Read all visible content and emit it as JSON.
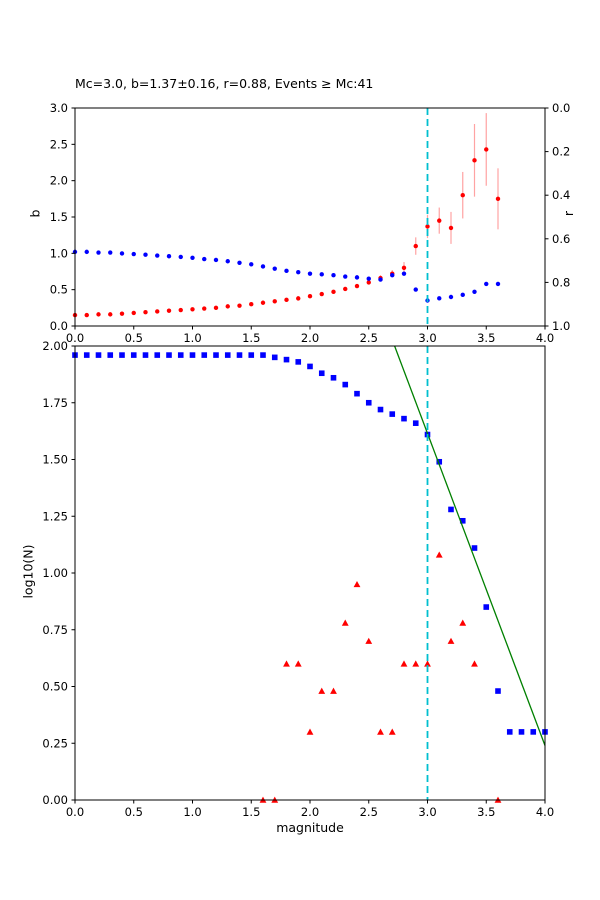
{
  "figure": {
    "title": "Mc=3.0, b=1.37±0.16, r=0.88, Events ≥ Mc:41",
    "background": "#ffffff"
  },
  "chart_data": [
    {
      "type": "scatter",
      "title": "Mc=3.0, b=1.37±0.16, r=0.88, Events ≥ Mc:41",
      "xlabel": "",
      "ylabel_left": "b",
      "ylabel_right": "r",
      "xlim": [
        0.0,
        4.0
      ],
      "ylim_left": [
        0.0,
        3.0
      ],
      "ylim_right": [
        0.0,
        1.0
      ],
      "right_axis_inverted": true,
      "grid": false,
      "x_tick_labels": [
        "0.0",
        "0.5",
        "1.0",
        "1.5",
        "2.0",
        "2.5",
        "3.0",
        "3.5",
        "4.0"
      ],
      "y_tick_labels_left": [
        "0.0",
        "0.5",
        "1.0",
        "1.5",
        "2.0",
        "2.5",
        "3.0"
      ],
      "y_tick_labels_right": [
        "0.0",
        "0.2",
        "0.4",
        "0.6",
        "0.8",
        "1.0"
      ],
      "vline": {
        "x": 3.0,
        "color": "#00bfcf",
        "style": "dashed"
      },
      "series": [
        {
          "name": "b-value-vs-cutoff",
          "axis": "left",
          "marker": "circle",
          "color": "#ff0000",
          "error_color": "#ffa3a3",
          "x": [
            0.0,
            0.1,
            0.2,
            0.3,
            0.4,
            0.5,
            0.6,
            0.7,
            0.8,
            0.9,
            1.0,
            1.1,
            1.2,
            1.3,
            1.4,
            1.5,
            1.6,
            1.7,
            1.8,
            1.9,
            2.0,
            2.1,
            2.2,
            2.3,
            2.4,
            2.5,
            2.6,
            2.7,
            2.8,
            2.9,
            3.0,
            3.1,
            3.2,
            3.3,
            3.4,
            3.5,
            3.6
          ],
          "y": [
            0.15,
            0.15,
            0.16,
            0.16,
            0.17,
            0.18,
            0.19,
            0.2,
            0.21,
            0.22,
            0.23,
            0.24,
            0.25,
            0.27,
            0.28,
            0.3,
            0.32,
            0.34,
            0.36,
            0.38,
            0.41,
            0.44,
            0.47,
            0.51,
            0.55,
            0.6,
            0.66,
            0.72,
            0.8,
            1.1,
            1.37,
            1.45,
            1.35,
            1.8,
            2.28,
            2.43,
            1.75
          ],
          "yerr": [
            0,
            0,
            0,
            0,
            0,
            0,
            0,
            0,
            0,
            0,
            0,
            0,
            0,
            0,
            0,
            0,
            0,
            0,
            0,
            0,
            0,
            0,
            0,
            0,
            0,
            0,
            0.04,
            0.05,
            0.08,
            0.12,
            0.16,
            0.18,
            0.22,
            0.32,
            0.5,
            0.5,
            0.42
          ]
        },
        {
          "name": "r-correlation-vs-cutoff",
          "axis": "right",
          "marker": "circle",
          "color": "#0000ff",
          "x": [
            0.0,
            0.1,
            0.2,
            0.3,
            0.4,
            0.5,
            0.6,
            0.7,
            0.8,
            0.9,
            1.0,
            1.1,
            1.2,
            1.3,
            1.4,
            1.5,
            1.6,
            1.7,
            1.8,
            1.9,
            2.0,
            2.1,
            2.2,
            2.3,
            2.4,
            2.5,
            2.6,
            2.7,
            2.8,
            2.9,
            3.0,
            3.1,
            3.2,
            3.3,
            3.4,
            3.5,
            3.6
          ],
          "y": [
            0.66,
            0.66,
            0.663,
            0.663,
            0.667,
            0.67,
            0.673,
            0.677,
            0.68,
            0.683,
            0.687,
            0.693,
            0.697,
            0.703,
            0.71,
            0.717,
            0.727,
            0.737,
            0.747,
            0.753,
            0.76,
            0.763,
            0.767,
            0.773,
            0.777,
            0.783,
            0.787,
            0.767,
            0.76,
            0.833,
            0.883,
            0.873,
            0.867,
            0.857,
            0.843,
            0.807,
            0.807
          ]
        }
      ]
    },
    {
      "type": "scatter",
      "xlabel": "magnitude",
      "ylabel": "log10(N)",
      "xlim": [
        0.0,
        4.0
      ],
      "ylim": [
        0.0,
        2.0
      ],
      "grid": false,
      "x_tick_labels": [
        "0.0",
        "0.5",
        "1.0",
        "1.5",
        "2.0",
        "2.5",
        "3.0",
        "3.5",
        "4.0"
      ],
      "y_tick_labels": [
        "0.00",
        "0.25",
        "0.50",
        "0.75",
        "1.00",
        "1.25",
        "1.50",
        "1.75",
        "2.00"
      ],
      "vline": {
        "x": 3.0,
        "color": "#00bfcf",
        "style": "dashed"
      },
      "series": [
        {
          "name": "cumulative-event-counts",
          "marker": "square",
          "color": "#0000ff",
          "x": [
            0.0,
            0.1,
            0.2,
            0.3,
            0.4,
            0.5,
            0.6,
            0.7,
            0.8,
            0.9,
            1.0,
            1.1,
            1.2,
            1.3,
            1.4,
            1.5,
            1.6,
            1.7,
            1.8,
            1.9,
            2.0,
            2.1,
            2.2,
            2.3,
            2.4,
            2.5,
            2.6,
            2.7,
            2.8,
            2.9,
            3.0,
            3.1,
            3.2,
            3.3,
            3.4,
            3.5,
            3.6,
            3.7,
            3.8,
            3.9,
            4.0
          ],
          "y": [
            1.96,
            1.96,
            1.96,
            1.96,
            1.96,
            1.96,
            1.96,
            1.96,
            1.96,
            1.96,
            1.96,
            1.96,
            1.96,
            1.96,
            1.96,
            1.96,
            1.96,
            1.95,
            1.94,
            1.93,
            1.91,
            1.88,
            1.86,
            1.83,
            1.79,
            1.75,
            1.72,
            1.7,
            1.68,
            1.66,
            1.61,
            1.49,
            1.28,
            1.23,
            1.11,
            0.85,
            0.48,
            0.3,
            0.3,
            0.3,
            0.3
          ]
        },
        {
          "name": "binned-event-counts",
          "marker": "triangle",
          "color": "#ff0000",
          "x": [
            1.6,
            1.7,
            1.8,
            1.9,
            2.0,
            2.1,
            2.2,
            2.3,
            2.4,
            2.5,
            2.6,
            2.7,
            2.8,
            2.9,
            3.0,
            3.1,
            3.2,
            3.3,
            3.4,
            3.6
          ],
          "y": [
            0.0,
            0.0,
            0.6,
            0.6,
            0.3,
            0.48,
            0.48,
            0.78,
            0.95,
            0.7,
            0.3,
            0.3,
            0.6,
            0.6,
            0.6,
            1.08,
            0.7,
            0.78,
            0.6,
            0.0
          ]
        },
        {
          "name": "gutenberg-richter-fit-line",
          "marker": "line",
          "color": "#008000",
          "x": [
            2.72,
            4.0
          ],
          "y": [
            2.0,
            0.24
          ]
        }
      ]
    }
  ]
}
